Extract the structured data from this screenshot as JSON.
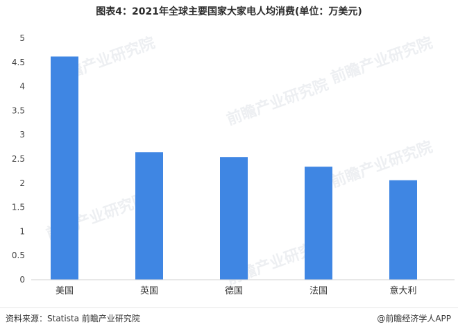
{
  "title": "图表4：2021年全球主要国家大家电人均消费(单位：万美元)",
  "watermark": "前瞻产业研究院",
  "footer": {
    "source": "资料来源：Statista 前瞻产业研究院",
    "brand": "@前瞻经济学人APP"
  },
  "colors": {
    "bar": "#3f86e3",
    "axis": "#d0d0d0"
  },
  "chart_data": {
    "type": "bar",
    "categories": [
      "美国",
      "英国",
      "德国",
      "法国",
      "意大利"
    ],
    "values": [
      4.62,
      2.64,
      2.54,
      2.34,
      2.06
    ],
    "ylim": [
      0,
      5
    ],
    "yticks": [
      "0",
      "0.5",
      "1",
      "1.5",
      "2",
      "2.5",
      "3",
      "3.5",
      "4",
      "4.5",
      "5"
    ],
    "grid": false,
    "title": "图表4：2021年全球主要国家大家电人均消费(单位：万美元)"
  }
}
